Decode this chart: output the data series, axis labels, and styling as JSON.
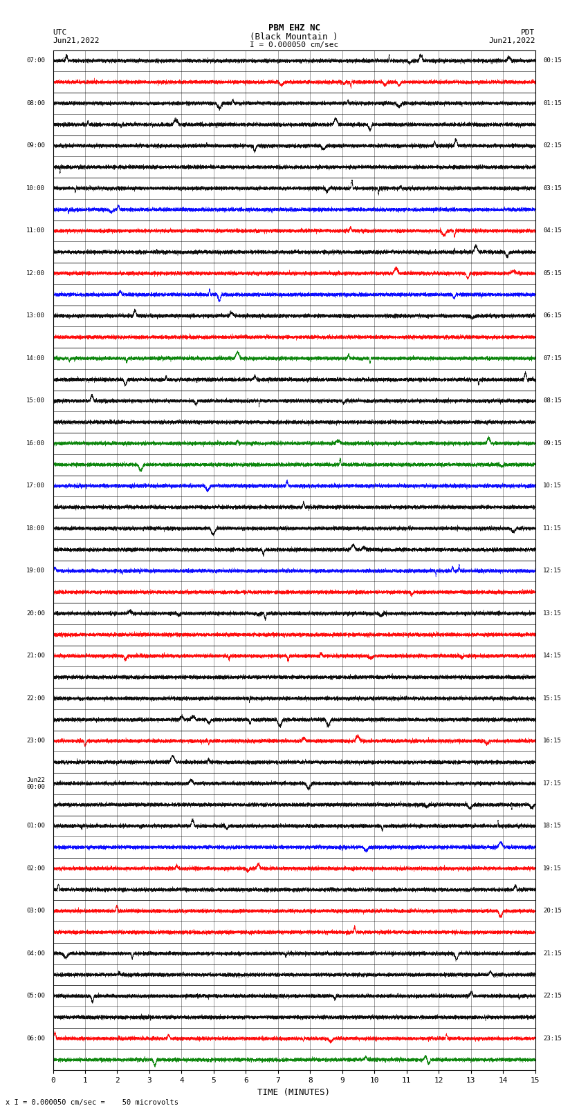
{
  "title_line1": "PBM EHZ NC",
  "title_line2": "(Black Mountain )",
  "scale_label": "I = 0.000050 cm/sec",
  "left_header": "UTC\nJun21,2022",
  "right_header": "PDT\nJun21,2022",
  "xlabel": "TIME (MINUTES)",
  "footer": "x I = 0.000050 cm/sec =    50 microvolts",
  "utc_labels": [
    "07:00",
    "",
    "08:00",
    "",
    "09:00",
    "",
    "10:00",
    "",
    "11:00",
    "",
    "12:00",
    "",
    "13:00",
    "",
    "14:00",
    "",
    "15:00",
    "",
    "16:00",
    "",
    "17:00",
    "",
    "18:00",
    "",
    "19:00",
    "",
    "20:00",
    "",
    "21:00",
    "",
    "22:00",
    "",
    "23:00",
    "",
    "Jun22\n00:00",
    "",
    "01:00",
    "",
    "02:00",
    "",
    "03:00",
    "",
    "04:00",
    "",
    "05:00",
    "",
    "06:00",
    ""
  ],
  "pdt_labels": [
    "00:15",
    "",
    "01:15",
    "",
    "02:15",
    "",
    "03:15",
    "",
    "04:15",
    "",
    "05:15",
    "",
    "06:15",
    "",
    "07:15",
    "",
    "08:15",
    "",
    "09:15",
    "",
    "10:15",
    "",
    "11:15",
    "",
    "12:15",
    "",
    "13:15",
    "",
    "14:15",
    "",
    "15:15",
    "",
    "16:15",
    "",
    "17:15",
    "",
    "18:15",
    "",
    "19:15",
    "",
    "20:15",
    "",
    "21:15",
    "",
    "22:15",
    "",
    "23:15",
    ""
  ],
  "n_rows": 48,
  "minutes_per_row": 15,
  "bg_color": "#ffffff",
  "trace_color": "#000000",
  "figsize": [
    8.5,
    16.13
  ],
  "dpi": 100
}
